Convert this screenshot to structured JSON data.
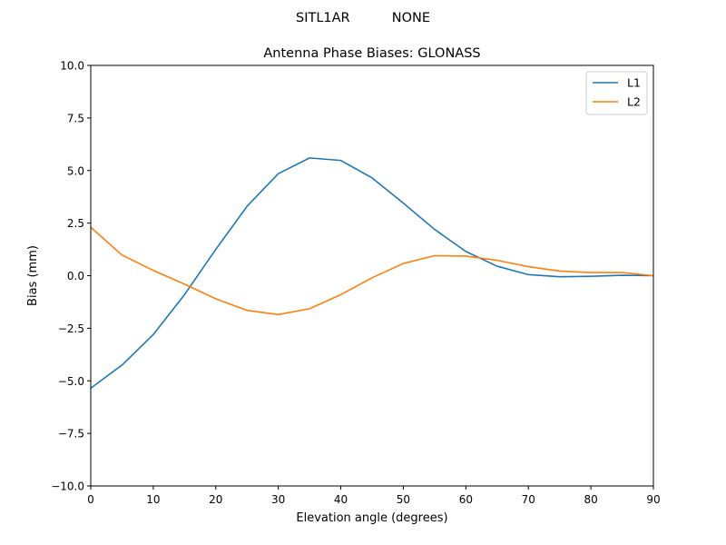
{
  "figure": {
    "suptitle": "SITL1AR          NONE"
  },
  "chart_data": {
    "type": "line",
    "title": "Antenna Phase Biases: GLONASS",
    "xlabel": "Elevation angle (degrees)",
    "ylabel": "Bias (mm)",
    "xlim": [
      0,
      90
    ],
    "ylim": [
      -10,
      10
    ],
    "xticks": [
      0,
      10,
      20,
      30,
      40,
      50,
      60,
      70,
      80,
      90
    ],
    "xtick_labels": [
      "0",
      "10",
      "20",
      "30",
      "40",
      "50",
      "60",
      "70",
      "80",
      "90"
    ],
    "yticks": [
      -10,
      -7.5,
      -5,
      -2.5,
      0,
      2.5,
      5,
      7.5,
      10
    ],
    "ytick_labels": [
      "−10.0",
      "−7.5",
      "−5.0",
      "−2.5",
      "0.0",
      "2.5",
      "5.0",
      "7.5",
      "10.0"
    ],
    "grid": false,
    "legend_position": "top-right",
    "x": [
      0,
      5,
      10,
      15,
      20,
      25,
      30,
      35,
      40,
      45,
      50,
      55,
      60,
      65,
      70,
      75,
      80,
      85,
      90
    ],
    "series": [
      {
        "name": "L1",
        "color": "#1f77b4",
        "values": [
          -5.35,
          -4.25,
          -2.8,
          -0.9,
          1.25,
          3.3,
          4.85,
          5.6,
          5.48,
          4.65,
          3.45,
          2.2,
          1.15,
          0.45,
          0.05,
          -0.05,
          -0.03,
          0.02,
          0.0
        ]
      },
      {
        "name": "L2",
        "color": "#ff7f0e",
        "values": [
          2.3,
          0.98,
          0.25,
          -0.4,
          -1.1,
          -1.65,
          -1.85,
          -1.57,
          -0.9,
          -0.1,
          0.58,
          0.95,
          0.93,
          0.73,
          0.43,
          0.22,
          0.15,
          0.15,
          0.0
        ]
      }
    ]
  }
}
